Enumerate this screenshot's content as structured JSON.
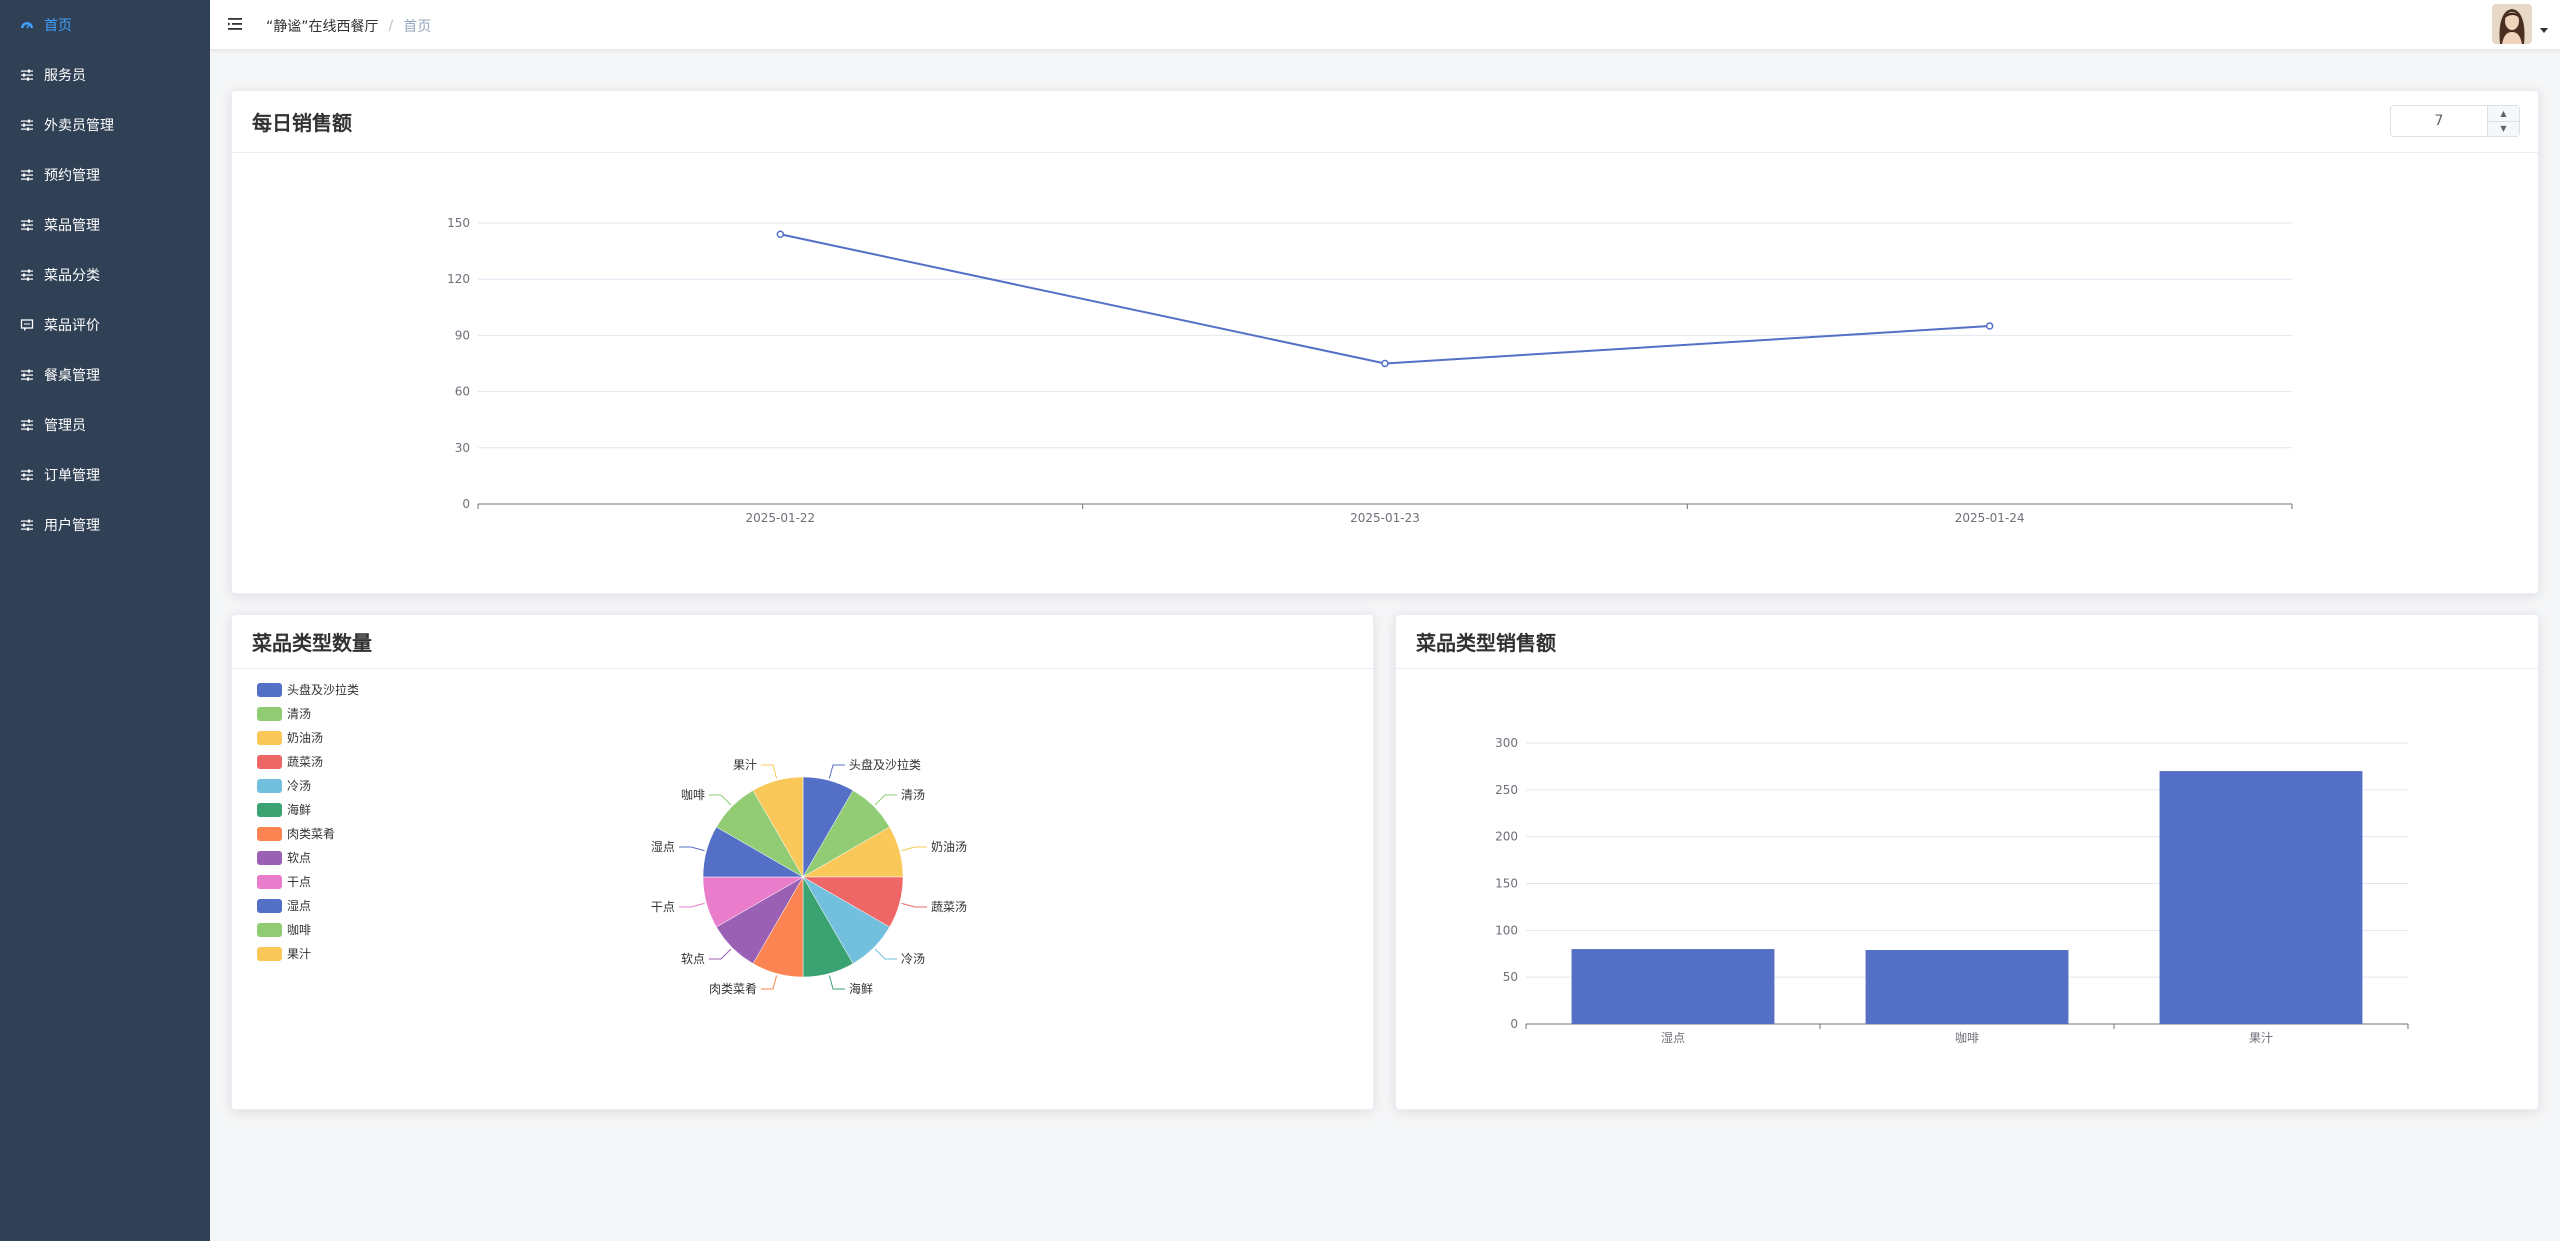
{
  "sidebar": {
    "items": [
      {
        "label": "首页",
        "icon": "dashboard-icon",
        "active": true
      },
      {
        "label": "服务员",
        "icon": "sliders-icon"
      },
      {
        "label": "外卖员管理",
        "icon": "sliders-icon"
      },
      {
        "label": "预约管理",
        "icon": "sliders-icon"
      },
      {
        "label": "菜品管理",
        "icon": "sliders-icon"
      },
      {
        "label": "菜品分类",
        "icon": "sliders-icon"
      },
      {
        "label": "菜品评价",
        "icon": "comment-icon"
      },
      {
        "label": "餐桌管理",
        "icon": "sliders-icon"
      },
      {
        "label": "管理员",
        "icon": "sliders-icon"
      },
      {
        "label": "订单管理",
        "icon": "sliders-icon"
      },
      {
        "label": "用户管理",
        "icon": "sliders-icon"
      }
    ]
  },
  "header": {
    "breadcrumb": [
      "“静谧”在线西餐厅",
      "首页"
    ],
    "breadcrumb_separator": "/"
  },
  "daily_sales": {
    "title": "每日销售额",
    "days_value": "7"
  },
  "category_count": {
    "title": "菜品类型数量"
  },
  "category_sales": {
    "title": "菜品类型销售额"
  },
  "chart_data": [
    {
      "type": "line",
      "x": [
        "2025-01-22",
        "2025-01-23",
        "2025-01-24"
      ],
      "series": [
        {
          "values": [
            144,
            75,
            95
          ],
          "color": "#5470c6"
        }
      ],
      "ylim": [
        0,
        150
      ],
      "yticks": [
        0,
        30,
        60,
        90,
        120,
        150
      ],
      "grid": true
    },
    {
      "type": "pie",
      "legend_position": "top-left",
      "labels": [
        "头盘及沙拉类",
        "清汤",
        "奶油汤",
        "蔬菜汤",
        "冷汤",
        "海鲜",
        "肉类菜肴",
        "软点",
        "干点",
        "湿点",
        "咖啡",
        "果汁"
      ],
      "values": [
        1,
        1,
        1,
        1,
        1,
        1,
        1,
        1,
        1,
        1,
        1,
        1
      ],
      "colors": [
        "#5470c6",
        "#91cc75",
        "#fac858",
        "#ee6666",
        "#73c0de",
        "#3ba272",
        "#fc8452",
        "#9a60b4",
        "#ea7ccc",
        "#5470c6",
        "#91cc75",
        "#fac858"
      ]
    },
    {
      "type": "bar",
      "categories": [
        "湿点",
        "咖啡",
        "果汁"
      ],
      "values": [
        80,
        79,
        270
      ],
      "color": "#5470c6",
      "ylim": [
        0,
        300
      ],
      "yticks": [
        0,
        50,
        100,
        150,
        200,
        250,
        300
      ],
      "grid": true
    }
  ]
}
